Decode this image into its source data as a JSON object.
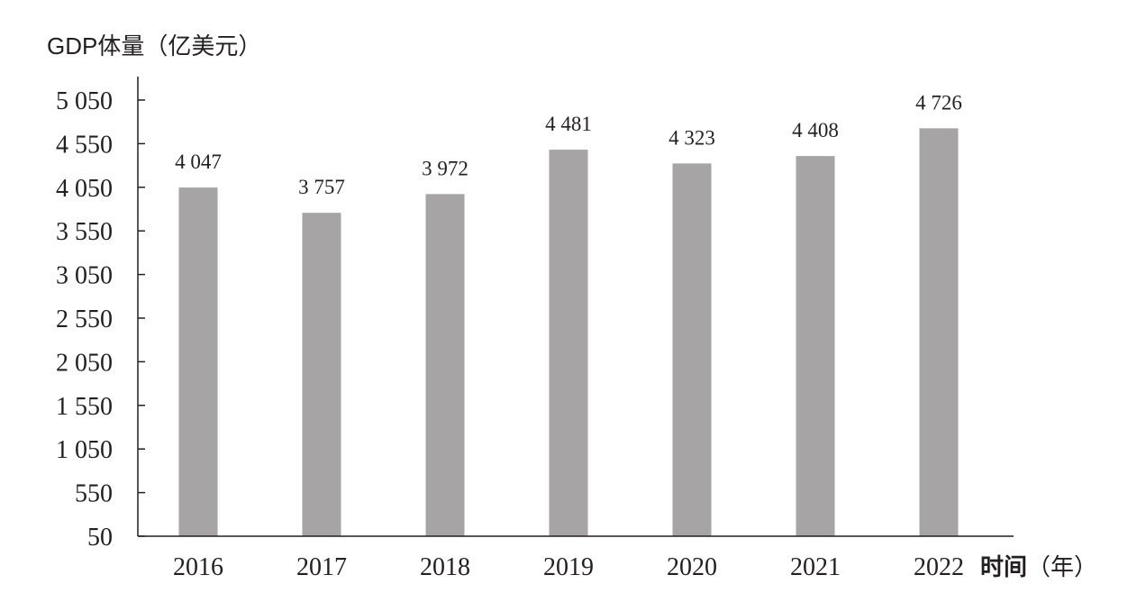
{
  "chart_data": {
    "type": "bar",
    "ylabel": "GDP体量（亿美元）",
    "xlabel_bold": "时间",
    "xlabel_rest": "（年）",
    "categories": [
      "2016",
      "2017",
      "2018",
      "2019",
      "2020",
      "2021",
      "2022"
    ],
    "values": [
      4047,
      3757,
      3972,
      4481,
      4323,
      4408,
      4726
    ],
    "value_labels": [
      "4 047",
      "3 757",
      "3 972",
      "4 481",
      "4 323",
      "4 408",
      "4 726"
    ],
    "yticks": [
      50,
      550,
      1050,
      1550,
      2050,
      2550,
      3050,
      3550,
      4050,
      4550,
      5050
    ],
    "ytick_labels": [
      "50",
      "550",
      "1 050",
      "1 550",
      "2 050",
      "2 550",
      "3 050",
      "3 550",
      "4 050",
      "4 550",
      "5 050"
    ],
    "ylim": [
      50,
      5050
    ],
    "grid": false,
    "colors": {
      "bar": "#a6a4a4",
      "axis": "#231f20"
    }
  }
}
